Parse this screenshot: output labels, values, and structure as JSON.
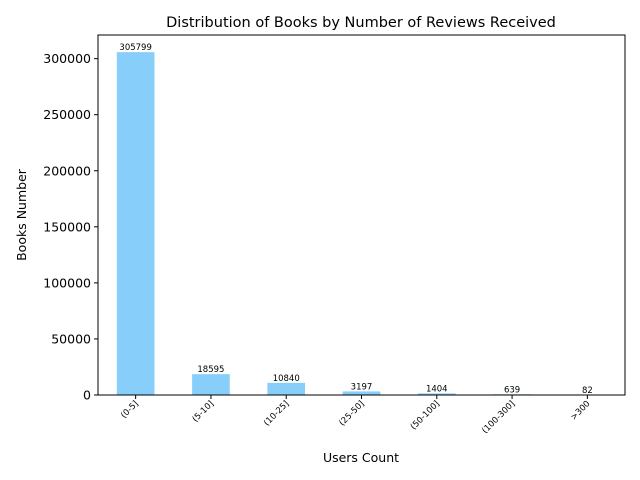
{
  "chart_data": {
    "type": "bar",
    "title": "Distribution of Books by Number of Reviews Received",
    "xlabel": "Users Count",
    "ylabel": "Books Number",
    "categories": [
      "(0-5]",
      "(5-10]",
      "(10-25]",
      "(25-50]",
      "(50-100]",
      "(100-300]",
      ">300"
    ],
    "values": [
      305799,
      18595,
      10840,
      3197,
      1404,
      639,
      82
    ],
    "data_labels": [
      "305799",
      "18595",
      "10840",
      "3197",
      "1404",
      "639",
      "82"
    ],
    "yticks": [
      0,
      50000,
      100000,
      150000,
      200000,
      250000,
      300000
    ],
    "ytick_labels": [
      "0",
      "50000",
      "100000",
      "150000",
      "200000",
      "250000",
      "300000"
    ],
    "ylim": [
      0,
      321089
    ],
    "bar_color": "#87CEFA",
    "grid": false,
    "legend": "none"
  }
}
